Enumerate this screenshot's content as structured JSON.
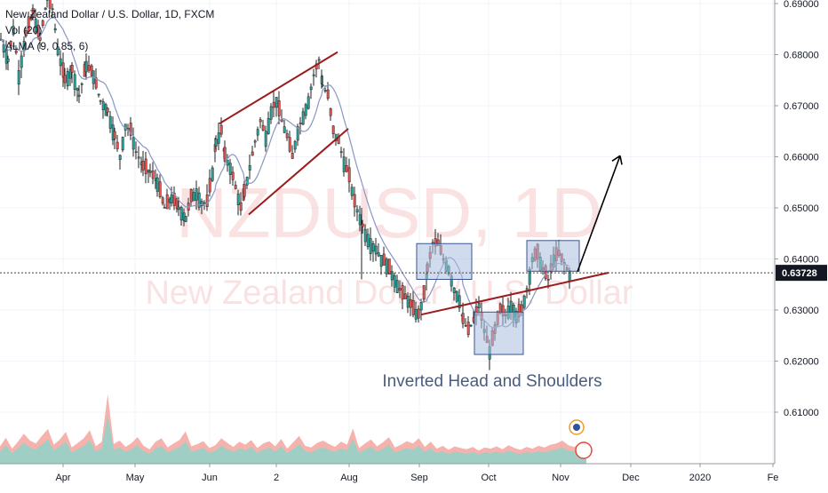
{
  "header": {
    "title": "New Zealand Dollar / U.S. Dollar, 1D, FXCM",
    "vol": "Vol (20)",
    "alma": "ALMA (9, 0.85, 6)"
  },
  "watermark": {
    "symbol": "NZDUSD, 1D",
    "name": "New Zealand Dollar / U.S. Dollar"
  },
  "annotation": "Inverted Head and Shoulders",
  "price_label": "0.63728",
  "chart_data": {
    "type": "candlestick",
    "title": "New Zealand Dollar / U.S. Dollar, 1D, FXCM",
    "ylim": [
      0.6015,
      0.6905
    ],
    "y_ticks": [
      "0.69000",
      "0.68000",
      "0.67000",
      "0.66000",
      "0.65000",
      "0.64000",
      "0.63000",
      "0.62000",
      "0.61000"
    ],
    "y_tick_values": [
      0.69,
      0.68,
      0.67,
      0.66,
      0.65,
      0.64,
      0.63,
      0.62,
      0.61
    ],
    "x_ticks": [
      "Apr",
      "May",
      "Jun",
      "2",
      "Aug",
      "Sep",
      "Oct",
      "Nov",
      "Dec",
      "2020",
      "Fe"
    ],
    "last_price": 0.63728,
    "grid": true,
    "colors": {
      "up": "#26a69a",
      "down": "#ef5350",
      "trendline": "#9c1c1c",
      "ma": "#7b8ab8",
      "box_fill": "#a9bfdf",
      "box_stroke": "#3a5590",
      "arrow": "#000000"
    },
    "close_path": [
      [
        0,
        0.683
      ],
      [
        8,
        0.679
      ],
      [
        14,
        0.685
      ],
      [
        20,
        0.676
      ],
      [
        28,
        0.684
      ],
      [
        36,
        0.688
      ],
      [
        44,
        0.683
      ],
      [
        52,
        0.691
      ],
      [
        58,
        0.689
      ],
      [
        64,
        0.681
      ],
      [
        72,
        0.675
      ],
      [
        80,
        0.677
      ],
      [
        88,
        0.672
      ],
      [
        96,
        0.678
      ],
      [
        104,
        0.676
      ],
      [
        112,
        0.671
      ],
      [
        120,
        0.669
      ],
      [
        128,
        0.664
      ],
      [
        134,
        0.66
      ],
      [
        140,
        0.666
      ],
      [
        146,
        0.665
      ],
      [
        152,
        0.661
      ],
      [
        160,
        0.658
      ],
      [
        168,
        0.657
      ],
      [
        176,
        0.655
      ],
      [
        184,
        0.65
      ],
      [
        192,
        0.652
      ],
      [
        200,
        0.65
      ],
      [
        208,
        0.648
      ],
      [
        214,
        0.652
      ],
      [
        220,
        0.653
      ],
      [
        226,
        0.651
      ],
      [
        232,
        0.651
      ],
      [
        238,
        0.657
      ],
      [
        242,
        0.663
      ],
      [
        248,
        0.665
      ],
      [
        252,
        0.66
      ],
      [
        258,
        0.658
      ],
      [
        264,
        0.654
      ],
      [
        270,
        0.65
      ],
      [
        274,
        0.653
      ],
      [
        280,
        0.658
      ],
      [
        286,
        0.663
      ],
      [
        292,
        0.667
      ],
      [
        298,
        0.664
      ],
      [
        304,
        0.669
      ],
      [
        310,
        0.671
      ],
      [
        316,
        0.667
      ],
      [
        322,
        0.664
      ],
      [
        328,
        0.66
      ],
      [
        334,
        0.665
      ],
      [
        340,
        0.668
      ],
      [
        346,
        0.671
      ],
      [
        352,
        0.676
      ],
      [
        358,
        0.679
      ],
      [
        362,
        0.674
      ],
      [
        368,
        0.672
      ],
      [
        374,
        0.665
      ],
      [
        380,
        0.663
      ],
      [
        386,
        0.659
      ],
      [
        392,
        0.656
      ],
      [
        398,
        0.651
      ],
      [
        404,
        0.648
      ],
      [
        410,
        0.645
      ],
      [
        416,
        0.643
      ],
      [
        422,
        0.642
      ],
      [
        428,
        0.64
      ],
      [
        434,
        0.639
      ],
      [
        440,
        0.637
      ],
      [
        446,
        0.635
      ],
      [
        452,
        0.633
      ],
      [
        458,
        0.632
      ],
      [
        464,
        0.63
      ],
      [
        470,
        0.629
      ],
      [
        476,
        0.633
      ],
      [
        480,
        0.638
      ],
      [
        486,
        0.643
      ],
      [
        492,
        0.643
      ],
      [
        498,
        0.64
      ],
      [
        504,
        0.638
      ],
      [
        510,
        0.634
      ],
      [
        516,
        0.632
      ],
      [
        520,
        0.628
      ],
      [
        526,
        0.626
      ],
      [
        532,
        0.628
      ],
      [
        538,
        0.631
      ],
      [
        544,
        0.626
      ],
      [
        550,
        0.622
      ],
      [
        556,
        0.626
      ],
      [
        562,
        0.63
      ],
      [
        568,
        0.629
      ],
      [
        574,
        0.631
      ],
      [
        580,
        0.629
      ],
      [
        586,
        0.63
      ],
      [
        592,
        0.634
      ],
      [
        598,
        0.64
      ],
      [
        604,
        0.641
      ],
      [
        610,
        0.638
      ],
      [
        616,
        0.636
      ],
      [
        622,
        0.64
      ],
      [
        628,
        0.641
      ],
      [
        634,
        0.639
      ],
      [
        640,
        0.637
      ]
    ],
    "volume_heights": [
      30,
      45,
      26,
      38,
      52,
      40,
      35,
      48,
      60,
      33,
      42,
      55,
      28,
      36,
      44,
      58,
      30,
      38,
      120,
      34,
      40,
      29,
      36,
      46,
      31,
      25,
      38,
      44,
      28,
      35,
      41,
      56,
      30,
      34,
      39,
      27,
      32,
      44,
      36,
      29,
      38,
      33,
      41,
      27,
      35,
      39,
      30,
      43,
      26,
      37,
      48,
      31,
      28,
      36,
      40,
      34,
      29,
      38,
      33,
      61,
      27,
      35,
      42,
      30,
      37,
      46,
      28,
      33,
      39,
      35,
      44,
      29,
      38,
      26,
      31,
      24,
      30,
      27,
      25,
      29,
      23,
      28,
      26,
      30,
      25,
      32,
      27,
      24,
      29,
      26,
      31,
      28,
      33,
      35,
      40,
      32,
      29,
      36,
      27
    ],
    "patterns": {
      "rising_channel": {
        "upper": [
          [
            0.6665,
            247
          ],
          [
            0.6805,
            380
          ]
        ],
        "lower": [
          [
            0.6487,
            280
          ],
          [
            0.6655,
            392
          ]
        ]
      },
      "neckline": [
        [
          0.6291,
          474
        ],
        [
          0.6373,
          685
        ]
      ],
      "boxes": [
        {
          "role": "left-shoulder",
          "y_top": 0.643,
          "y_bottom": 0.636
        },
        {
          "role": "head",
          "y_top": 0.6296,
          "y_bottom": 0.6213
        },
        {
          "role": "right-shoulder",
          "y_top": 0.6436,
          "y_bottom": 0.6376
        }
      ],
      "target_arrow": {
        "from": [
          0.6375,
          650
        ],
        "to": [
          0.6602,
          698
        ]
      }
    }
  }
}
